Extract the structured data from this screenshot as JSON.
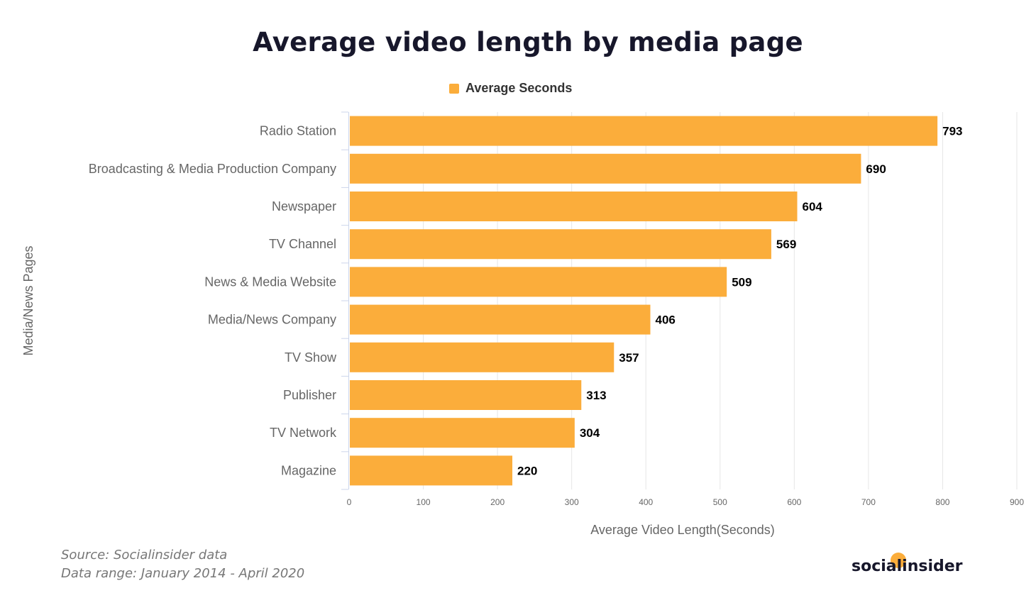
{
  "chart_data": {
    "type": "bar",
    "orientation": "horizontal",
    "title": "Average video length by media page",
    "categories": [
      "Radio Station",
      "Broadcasting & Media Production Company",
      "Newspaper",
      "TV Channel",
      "News & Media Website",
      "Media/News Company",
      "TV Show",
      "Publisher",
      "TV Network",
      "Magazine"
    ],
    "series": [
      {
        "name": "Average Seconds",
        "values": [
          793,
          690,
          604,
          569,
          509,
          406,
          357,
          313,
          304,
          220
        ],
        "color": "#fbad3b"
      }
    ],
    "xlabel": "Average Video Length(Seconds)",
    "ylabel": "Media/News Pages",
    "xlim": [
      0,
      900
    ],
    "xticks": [
      0,
      100,
      200,
      300,
      400,
      500,
      600,
      700,
      800,
      900
    ],
    "grid": true,
    "legend": "top"
  },
  "footer": {
    "source": "Source: Socialinsider data",
    "range": "Data range: January 2014 - April 2020"
  },
  "logo": "socialinsider"
}
